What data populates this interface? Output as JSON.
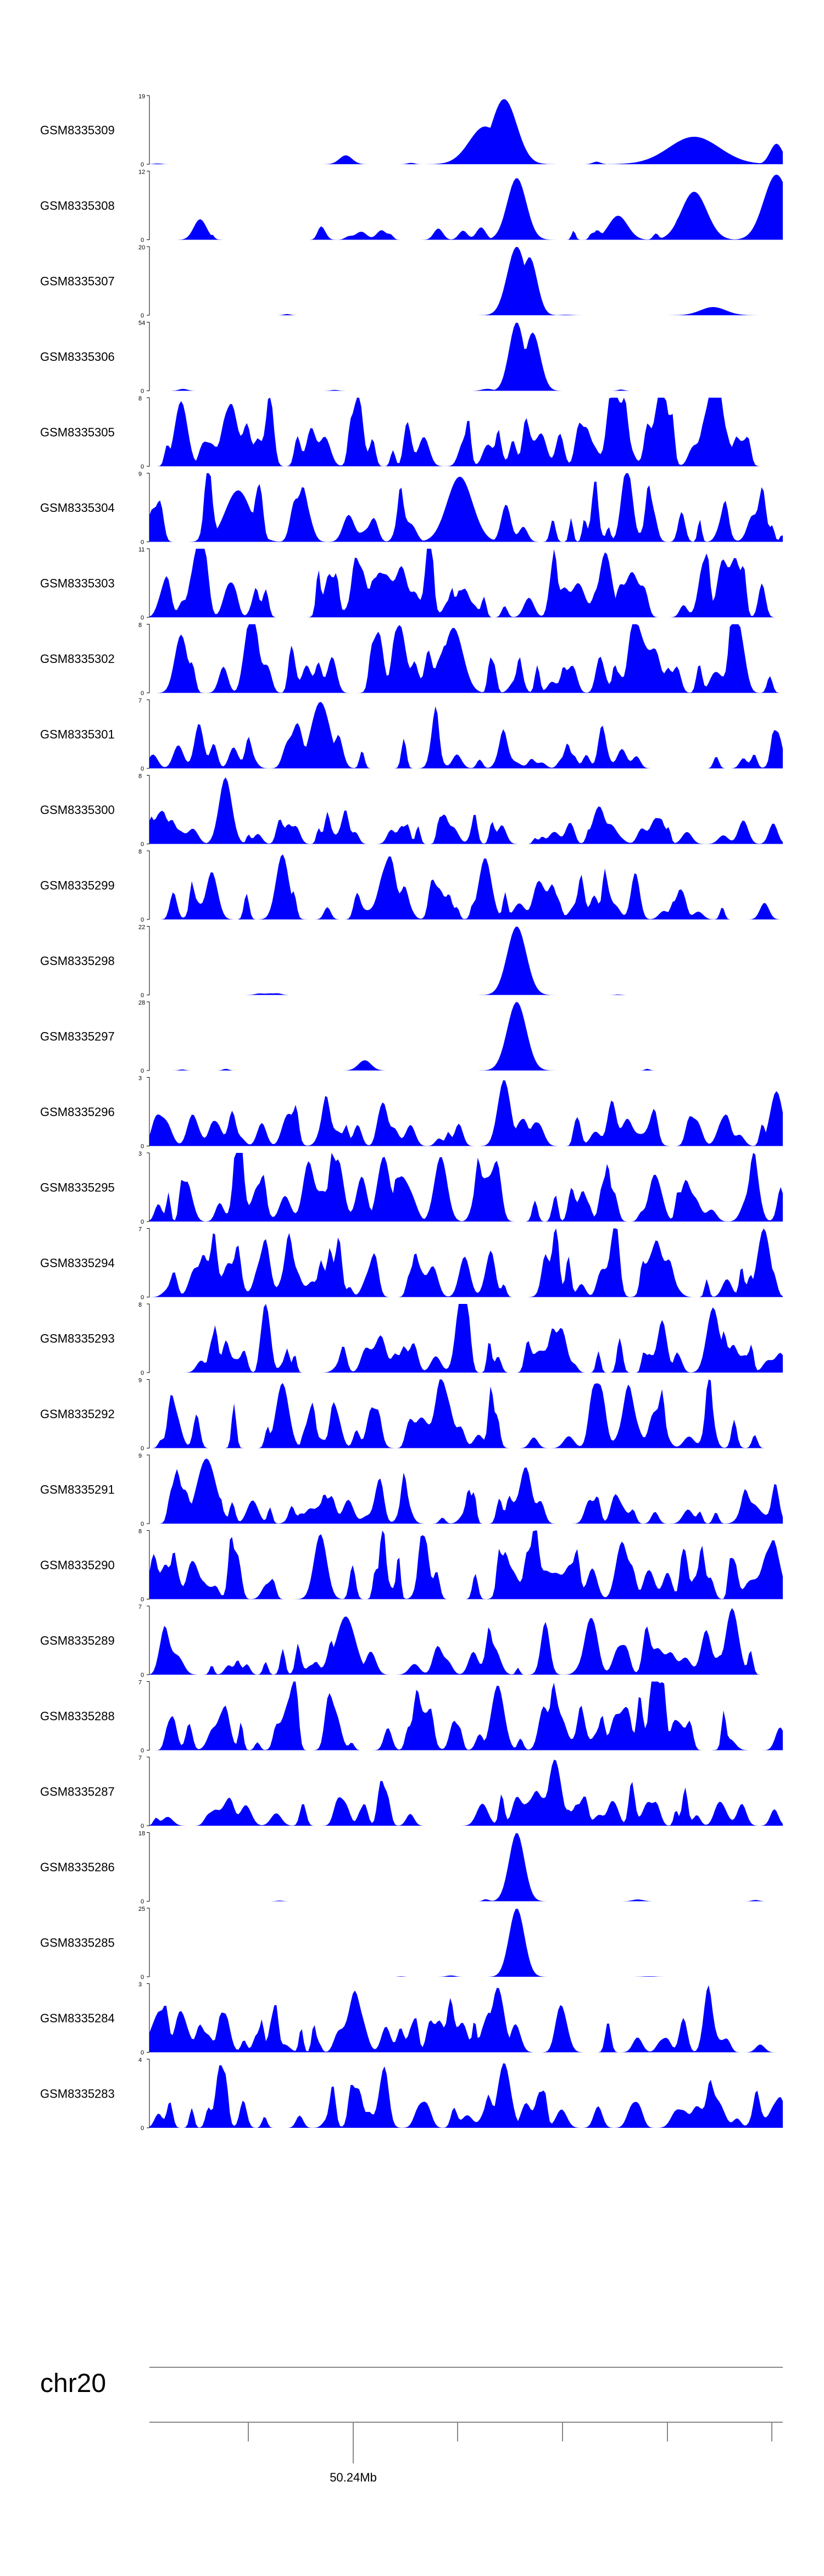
{
  "chart_data": {
    "type": "area",
    "track_color": "#0000ff",
    "grid": false,
    "chromosome": "chr20",
    "x_tick_label": "50.24Mb",
    "tracks": [
      {
        "name": "GSM8335309",
        "ymax": "19",
        "ymin": "0",
        "peaks": [
          [
            0.56,
            0.95,
            0.02
          ],
          [
            0.53,
            0.55,
            0.025
          ],
          [
            0.86,
            0.4,
            0.04
          ],
          [
            0.99,
            0.3,
            0.01
          ],
          [
            0.31,
            0.13,
            0.01
          ]
        ],
        "noise": 0.05,
        "seed": 1
      },
      {
        "name": "GSM8335308",
        "ymax": "12",
        "ymin": "0",
        "peaks": [
          [
            0.58,
            0.9,
            0.015
          ],
          [
            0.86,
            0.7,
            0.02
          ],
          [
            0.99,
            0.95,
            0.02
          ],
          [
            0.08,
            0.3,
            0.01
          ],
          [
            0.74,
            0.35,
            0.015
          ]
        ],
        "noise": 0.2,
        "seed": 2
      },
      {
        "name": "GSM8335307",
        "ymax": "20",
        "ymin": "0",
        "peaks": [
          [
            0.58,
            1.0,
            0.015
          ],
          [
            0.6,
            0.85,
            0.012
          ],
          [
            0.89,
            0.12,
            0.02
          ]
        ],
        "noise": 0.02,
        "seed": 3
      },
      {
        "name": "GSM8335306",
        "ymax": "54",
        "ymin": "0",
        "peaks": [
          [
            0.58,
            1.0,
            0.012
          ],
          [
            0.605,
            0.85,
            0.012
          ]
        ],
        "noise": 0.04,
        "seed": 4
      },
      {
        "name": "GSM8335305",
        "ymax": "8",
        "ymin": "0",
        "peaks": [
          [
            0.05,
            0.95,
            0.01
          ]
        ],
        "noise": 0.6,
        "seed": 5
      },
      {
        "name": "GSM8335304",
        "ymax": "9",
        "ymin": "0",
        "peaks": [
          [
            0.49,
            0.95,
            0.02
          ],
          [
            0.14,
            0.75,
            0.02
          ]
        ],
        "noise": 0.5,
        "seed": 6
      },
      {
        "name": "GSM8335303",
        "ymax": "11",
        "ymin": "0",
        "peaks": [
          [
            0.72,
            0.95,
            0.01
          ]
        ],
        "noise": 0.6,
        "seed": 7
      },
      {
        "name": "GSM8335302",
        "ymax": "8",
        "ymin": "0",
        "peaks": [
          [
            0.48,
            0.95,
            0.015
          ],
          [
            0.05,
            0.85,
            0.01
          ]
        ],
        "noise": 0.55,
        "seed": 8
      },
      {
        "name": "GSM8335301",
        "ymax": "7",
        "ymin": "0",
        "peaks": [
          [
            0.27,
            0.97,
            0.015
          ]
        ],
        "noise": 0.4,
        "seed": 9
      },
      {
        "name": "GSM8335300",
        "ymax": "8",
        "ymin": "0",
        "peaks": [
          [
            0.12,
            0.97,
            0.01
          ],
          [
            0.71,
            0.55,
            0.01
          ]
        ],
        "noise": 0.4,
        "seed": 10
      },
      {
        "name": "GSM8335299",
        "ymax": "8",
        "ymin": "0",
        "peaks": [
          [
            0.21,
            0.95,
            0.01
          ],
          [
            0.53,
            0.9,
            0.01
          ]
        ],
        "noise": 0.45,
        "seed": 11
      },
      {
        "name": "GSM8335298",
        "ymax": "22",
        "ymin": "0",
        "peaks": [
          [
            0.58,
            1.0,
            0.015
          ]
        ],
        "noise": 0.03,
        "seed": 12
      },
      {
        "name": "GSM8335297",
        "ymax": "28",
        "ymin": "0",
        "peaks": [
          [
            0.58,
            1.0,
            0.015
          ],
          [
            0.34,
            0.15,
            0.01
          ]
        ],
        "noise": 0.03,
        "seed": 13
      },
      {
        "name": "GSM8335296",
        "ymax": "3",
        "ymin": "0",
        "peaks": [
          [
            0.56,
            0.97,
            0.01
          ],
          [
            0.99,
            0.8,
            0.01
          ]
        ],
        "noise": 0.45,
        "seed": 14
      },
      {
        "name": "GSM8335295",
        "ymax": "3",
        "ymin": "0",
        "peaks": [
          [
            0.37,
            0.95,
            0.01
          ],
          [
            0.46,
            0.95,
            0.01
          ]
        ],
        "noise": 0.55,
        "seed": 15
      },
      {
        "name": "GSM8335294",
        "ymax": "7",
        "ymin": "0",
        "peaks": [
          [
            0.97,
            1.0,
            0.01
          ]
        ],
        "noise": 0.55,
        "seed": 16
      },
      {
        "name": "GSM8335293",
        "ymax": "8",
        "ymin": "0",
        "peaks": [
          [
            0.89,
            0.95,
            0.01
          ]
        ],
        "noise": 0.5,
        "seed": 17
      },
      {
        "name": "GSM8335292",
        "ymax": "9",
        "ymin": "0",
        "peaks": [
          [
            0.21,
            0.95,
            0.01
          ]
        ],
        "noise": 0.5,
        "seed": 18
      },
      {
        "name": "GSM8335291",
        "ymax": "9",
        "ymin": "0",
        "peaks": [
          [
            0.09,
            0.95,
            0.015
          ]
        ],
        "noise": 0.45,
        "seed": 19
      },
      {
        "name": "GSM8335290",
        "ymax": "8",
        "ymin": "0",
        "peaks": [
          [
            0.27,
            0.95,
            0.01
          ]
        ],
        "noise": 0.6,
        "seed": 20
      },
      {
        "name": "GSM8335289",
        "ymax": "7",
        "ymin": "0",
        "peaks": [
          [
            0.92,
            0.97,
            0.01
          ],
          [
            0.31,
            0.85,
            0.015
          ]
        ],
        "noise": 0.45,
        "seed": 21
      },
      {
        "name": "GSM8335288",
        "ymax": "7",
        "ymin": "0",
        "peaks": [
          [
            0.55,
            0.95,
            0.01
          ]
        ],
        "noise": 0.55,
        "seed": 22
      },
      {
        "name": "GSM8335287",
        "ymax": "7",
        "ymin": "0",
        "peaks": [
          [
            0.64,
            0.97,
            0.01
          ]
        ],
        "noise": 0.4,
        "seed": 23
      },
      {
        "name": "GSM8335286",
        "ymax": "18",
        "ymin": "0",
        "peaks": [
          [
            0.58,
            1.0,
            0.012
          ]
        ],
        "noise": 0.04,
        "seed": 24
      },
      {
        "name": "GSM8335285",
        "ymax": "25",
        "ymin": "0",
        "peaks": [
          [
            0.58,
            1.0,
            0.012
          ]
        ],
        "noise": 0.03,
        "seed": 25
      },
      {
        "name": "GSM8335284",
        "ymax": "3",
        "ymin": "0",
        "peaks": [
          [
            0.55,
            0.95,
            0.01
          ]
        ],
        "noise": 0.5,
        "seed": 26
      },
      {
        "name": "GSM8335283",
        "ymax": "4",
        "ymin": "0",
        "peaks": [
          [
            0.56,
            0.95,
            0.01
          ]
        ],
        "noise": 0.45,
        "seed": 27
      }
    ]
  }
}
